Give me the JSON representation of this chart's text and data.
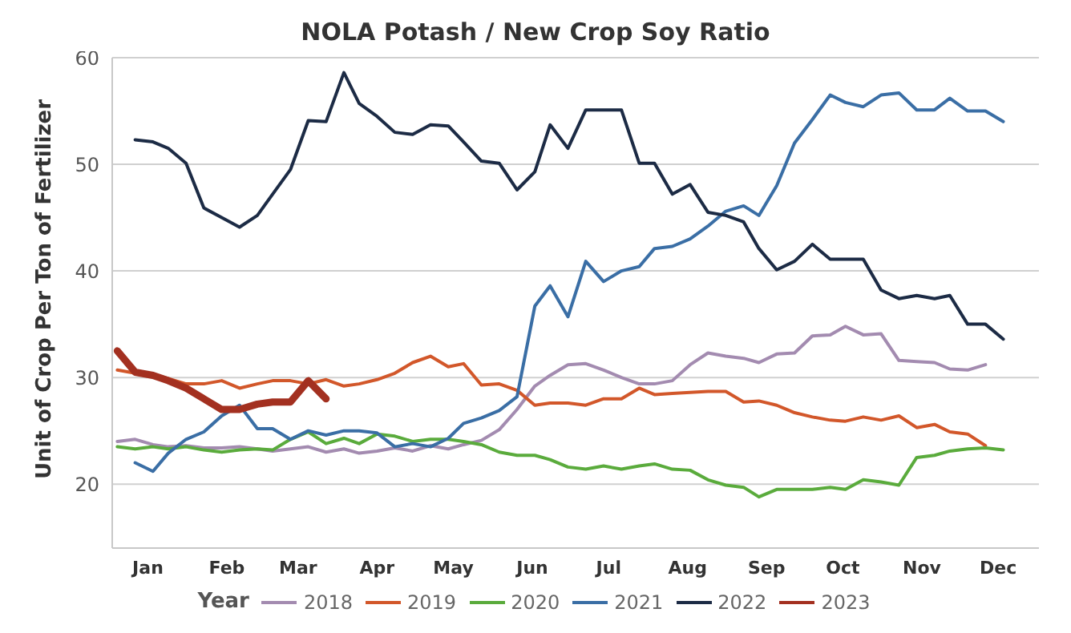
{
  "chart_data": {
    "type": "line",
    "title": "NOLA Potash / New Crop Soy Ratio",
    "ylabel": "Unit of Crop Per Ton of Fertilizer",
    "legend_title": "Year",
    "legend": "bottom",
    "grid": "y",
    "marker": "none",
    "line_style": "solid",
    "xlim": [
      "--01-01",
      "--12-31"
    ],
    "xticks": [
      {
        "value": "--01-15",
        "label": "Jan"
      },
      {
        "value": "--02-15",
        "label": "Feb"
      },
      {
        "value": "--03-15",
        "label": "Mar"
      },
      {
        "value": "--04-15",
        "label": "Apr"
      },
      {
        "value": "--05-15",
        "label": "May"
      },
      {
        "value": "--06-15",
        "label": "Jun"
      },
      {
        "value": "--07-15",
        "label": "Jul"
      },
      {
        "value": "--08-15",
        "label": "Aug"
      },
      {
        "value": "--09-15",
        "label": "Sep"
      },
      {
        "value": "--10-15",
        "label": "Oct"
      },
      {
        "value": "--11-15",
        "label": "Nov"
      },
      {
        "value": "--12-15",
        "label": "Dec"
      }
    ],
    "ylim": [
      14,
      60
    ],
    "yticks": [
      20,
      30,
      40,
      50,
      60
    ],
    "x": [
      "--01-03",
      "--01-10",
      "--01-17",
      "--01-23",
      "--01-30",
      "--02-06",
      "--02-13",
      "--02-20",
      "--02-27",
      "--03-05",
      "--03-12",
      "--03-19",
      "--03-26",
      "--04-02",
      "--04-08",
      "--04-15",
      "--04-22",
      "--04-29",
      "--05-06",
      "--05-13",
      "--05-19",
      "--05-26",
      "--06-02",
      "--06-09",
      "--06-16",
      "--06-22",
      "--06-29",
      "--07-06",
      "--07-13",
      "--07-20",
      "--07-27",
      "--08-02",
      "--08-09",
      "--08-16",
      "--08-23",
      "--08-30",
      "--09-06",
      "--09-12",
      "--09-19",
      "--09-26",
      "--10-03",
      "--10-10",
      "--10-16",
      "--10-23",
      "--10-30",
      "--11-06",
      "--11-13",
      "--11-20",
      "--11-26",
      "--12-03",
      "--12-10",
      "--12-17"
    ],
    "series": [
      {
        "name": "2018",
        "color": "#a38bb0",
        "values": [
          24.0,
          24.2,
          23.7,
          23.5,
          23.6,
          23.4,
          23.4,
          23.5,
          23.3,
          23.1,
          23.3,
          23.5,
          23.0,
          23.3,
          22.9,
          23.1,
          23.4,
          23.1,
          23.6,
          23.3,
          23.7,
          24.1,
          25.1,
          27.0,
          29.2,
          30.2,
          31.2,
          31.3,
          30.7,
          30.0,
          29.4,
          29.4,
          29.7,
          31.2,
          32.3,
          32.0,
          31.8,
          31.4,
          32.2,
          32.3,
          33.9,
          34.0,
          34.8,
          34.0,
          34.1,
          31.6,
          31.5,
          31.4,
          30.8,
          30.7,
          31.2,
          null
        ]
      },
      {
        "name": "2019",
        "color": "#d2572a",
        "values": [
          30.7,
          30.4,
          30.3,
          29.9,
          29.4,
          29.4,
          29.7,
          29.0,
          29.4,
          29.7,
          29.7,
          29.4,
          29.8,
          29.2,
          29.4,
          29.8,
          30.4,
          31.4,
          32.0,
          31.0,
          31.3,
          29.3,
          29.4,
          28.8,
          27.4,
          27.6,
          27.6,
          27.4,
          28.0,
          28.0,
          29.0,
          28.4,
          28.5,
          28.6,
          28.7,
          28.7,
          27.7,
          27.8,
          27.4,
          26.7,
          26.3,
          26.0,
          25.9,
          26.3,
          26.0,
          26.4,
          25.3,
          25.6,
          24.9,
          24.7,
          23.6,
          null
        ]
      },
      {
        "name": "2020",
        "color": "#5aab3c",
        "values": [
          23.5,
          23.3,
          23.5,
          23.3,
          23.5,
          23.2,
          23.0,
          23.2,
          23.3,
          23.2,
          24.2,
          24.9,
          23.8,
          24.3,
          23.8,
          24.7,
          24.5,
          24.0,
          24.2,
          24.2,
          24.0,
          23.7,
          23.0,
          22.7,
          22.7,
          22.3,
          21.6,
          21.4,
          21.7,
          21.4,
          21.7,
          21.9,
          21.4,
          21.3,
          20.4,
          19.9,
          19.7,
          18.8,
          19.5,
          19.5,
          19.5,
          19.7,
          19.5,
          20.4,
          20.2,
          19.9,
          22.5,
          22.7,
          23.1,
          23.3,
          23.4,
          23.2
        ]
      },
      {
        "name": "2021",
        "color": "#3a6ea5",
        "values": [
          null,
          22.0,
          21.2,
          22.9,
          24.2,
          24.9,
          26.4,
          27.4,
          25.2,
          25.2,
          24.2,
          25.0,
          24.6,
          25.0,
          25.0,
          24.8,
          23.5,
          23.8,
          23.5,
          24.3,
          25.7,
          26.2,
          26.9,
          28.2,
          36.7,
          38.6,
          35.7,
          40.9,
          39.0,
          40.0,
          40.4,
          42.1,
          42.3,
          43.0,
          44.2,
          45.6,
          46.1,
          45.2,
          48.0,
          52.0,
          54.2,
          56.5,
          55.8,
          55.4,
          56.5,
          56.7,
          55.1,
          55.1,
          56.2,
          55.0,
          55.0,
          54.0
        ]
      },
      {
        "name": "2022",
        "color": "#1c2b45",
        "values": [
          null,
          52.3,
          52.1,
          51.5,
          50.1,
          45.9,
          45.0,
          44.1,
          45.2,
          47.2,
          49.5,
          54.1,
          54.0,
          58.6,
          55.7,
          54.5,
          53.0,
          52.8,
          53.7,
          53.6,
          52.1,
          50.3,
          50.1,
          47.6,
          49.3,
          53.7,
          51.5,
          55.1,
          55.1,
          55.1,
          50.1,
          50.1,
          47.2,
          48.1,
          45.5,
          45.2,
          44.6,
          42.1,
          40.1,
          40.9,
          42.5,
          41.1,
          41.1,
          41.1,
          38.2,
          37.4,
          37.7,
          37.4,
          37.7,
          35.0,
          35.0,
          33.6
        ]
      },
      {
        "name": "2023",
        "color": "#a33020",
        "values": [
          32.5,
          30.5,
          30.2,
          29.7,
          29.0,
          28.0,
          27.0,
          27.0,
          27.5,
          27.7,
          27.7,
          29.7,
          28.0,
          null,
          null,
          null,
          null,
          null,
          null,
          null,
          null,
          null,
          null,
          null,
          null,
          null,
          null,
          null,
          null,
          null,
          null,
          null,
          null,
          null,
          null,
          null,
          null,
          null,
          null,
          null,
          null,
          null,
          null,
          null,
          null,
          null,
          null,
          null,
          null,
          null,
          null,
          null
        ]
      }
    ]
  }
}
